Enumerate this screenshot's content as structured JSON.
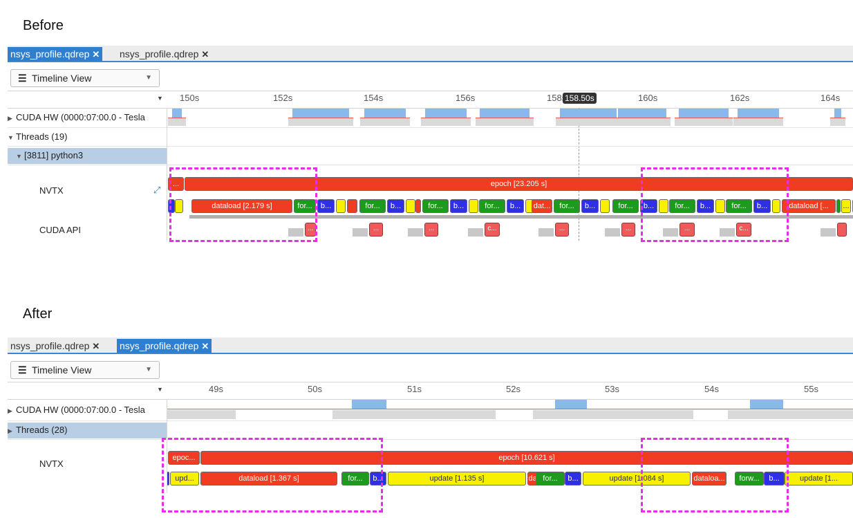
{
  "before": {
    "title": "Before",
    "tabs": [
      {
        "label": "nsys_profile.qdrep",
        "active": true
      },
      {
        "label": "nsys_profile.qdrep",
        "active": false
      }
    ],
    "close_glyph": "✕",
    "view_selector": {
      "icon": "hamburger-icon",
      "label": "Timeline View"
    },
    "ruler": {
      "ticks": [
        "150s",
        "152s",
        "154s",
        "156s",
        "158s",
        "160s",
        "162s",
        "164s"
      ],
      "cursor": "158.50s"
    },
    "rows": {
      "cuda_hw": "CUDA HW (0000:07:00.0 - Tesla",
      "threads": "Threads (19)",
      "python": "[3811] python3",
      "nvtx": "NVTX",
      "cuda_api": "CUDA API"
    },
    "nvtx_top": {
      "small": "...",
      "epoch": "epoch [23.205 s]"
    },
    "nvtx_bars": [
      {
        "label": "",
        "color": "blu"
      },
      {
        "label": "",
        "color": "yel"
      },
      {
        "label": "dataload [2.179 s]",
        "color": "red"
      },
      {
        "label": "for...",
        "color": "grn"
      },
      {
        "label": "b...",
        "color": "blu"
      },
      {
        "label": "",
        "color": "yel"
      },
      {
        "label": "",
        "color": "red"
      },
      {
        "label": "for...",
        "color": "grn"
      },
      {
        "label": "b...",
        "color": "blu"
      },
      {
        "label": "",
        "color": "yel"
      },
      {
        "label": "",
        "color": "red"
      },
      {
        "label": "for...",
        "color": "grn"
      },
      {
        "label": "b...",
        "color": "blu"
      },
      {
        "label": "",
        "color": "yel"
      },
      {
        "label": "for...",
        "color": "grn"
      },
      {
        "label": "b...",
        "color": "blu"
      },
      {
        "label": "",
        "color": "yel"
      },
      {
        "label": "dat...",
        "color": "red"
      },
      {
        "label": "for...",
        "color": "grn"
      },
      {
        "label": "b...",
        "color": "blu"
      },
      {
        "label": "",
        "color": "yel"
      },
      {
        "label": "for...",
        "color": "grn"
      },
      {
        "label": "b...",
        "color": "blu"
      },
      {
        "label": "",
        "color": "yel"
      },
      {
        "label": "for...",
        "color": "grn"
      },
      {
        "label": "b...",
        "color": "blu"
      },
      {
        "label": "",
        "color": "yel"
      },
      {
        "label": "for...",
        "color": "grn"
      },
      {
        "label": "b...",
        "color": "blu"
      },
      {
        "label": "",
        "color": "yel"
      },
      {
        "label": "dataload [...",
        "color": "red"
      },
      {
        "label": "",
        "color": "grn"
      },
      {
        "label": "...",
        "color": "yel"
      },
      {
        "label": "f...",
        "color": "grn"
      }
    ],
    "api_labels": [
      "...",
      "...",
      "...",
      "c...",
      "...",
      "...",
      "...",
      "c...",
      ""
    ]
  },
  "after": {
    "title": "After",
    "tabs": [
      {
        "label": "nsys_profile.qdrep",
        "active": false
      },
      {
        "label": "nsys_profile.qdrep",
        "active": true
      }
    ],
    "close_glyph": "✕",
    "view_selector": {
      "icon": "hamburger-icon",
      "label": "Timeline View"
    },
    "ruler": {
      "ticks": [
        "49s",
        "50s",
        "51s",
        "52s",
        "53s",
        "54s",
        "55s"
      ]
    },
    "rows": {
      "cuda_hw": "CUDA HW (0000:07:00.0 - Tesla",
      "threads": "Threads (28)",
      "nvtx": "NVTX"
    },
    "nvtx_top": {
      "small": "epoc...",
      "epoch": "epoch [10.621 s]"
    },
    "nvtx_bars": [
      {
        "label": "",
        "color": "blu"
      },
      {
        "label": "upd...",
        "color": "yel"
      },
      {
        "label": "dataload [1.367 s]",
        "color": "red"
      },
      {
        "label": "for...",
        "color": "grn"
      },
      {
        "label": "b...",
        "color": "blu"
      },
      {
        "label": "update [1.135 s]",
        "color": "yel"
      },
      {
        "label": "datal...",
        "color": "red"
      },
      {
        "label": "for...",
        "color": "grn"
      },
      {
        "label": "b...",
        "color": "blu"
      },
      {
        "label": "update [1.084 s]",
        "color": "yel"
      },
      {
        "label": "dataloa...",
        "color": "red"
      },
      {
        "label": "forw...",
        "color": "grn"
      },
      {
        "label": "b...",
        "color": "blu"
      },
      {
        "label": "update [1...",
        "color": "yel"
      }
    ]
  }
}
